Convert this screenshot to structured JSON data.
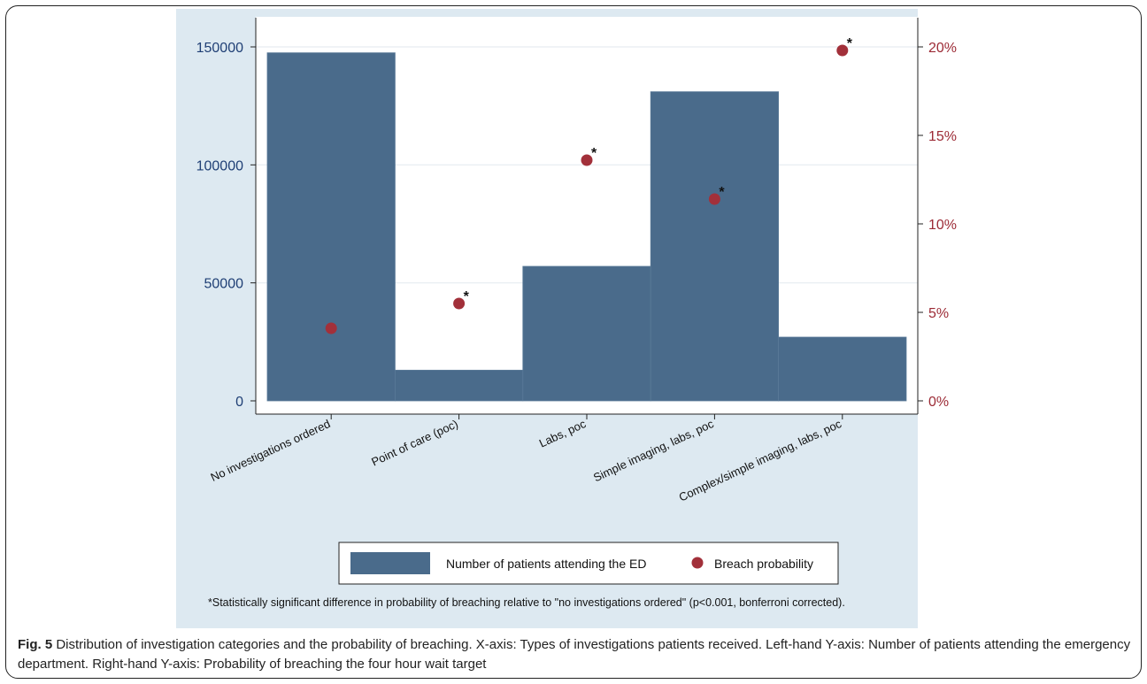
{
  "chart_data": {
    "type": "bar",
    "categories": [
      "No investigations ordered",
      "Point of care (poc)",
      "Labs, poc",
      "Simple imaging, labs, poc",
      "Complex/simple imaging, labs, poc"
    ],
    "series": [
      {
        "name": "Number of patients attending the ED",
        "type": "bar",
        "axis": "left",
        "values": [
          147500,
          13000,
          57000,
          131000,
          27000
        ],
        "color": "#4a6b8b"
      },
      {
        "name": "Breach probability",
        "type": "scatter",
        "axis": "right",
        "values": [
          4.1,
          5.5,
          13.6,
          11.4,
          19.8
        ],
        "significant": [
          false,
          true,
          true,
          true,
          true
        ],
        "color": "#a2303a"
      }
    ],
    "ylim_left": [
      0,
      150000
    ],
    "yticks_left": [
      "0",
      "50000",
      "100000",
      "150000"
    ],
    "ylim_right": [
      0,
      20
    ],
    "yticks_right": [
      "0%",
      "5%",
      "10%",
      "15%",
      "20%"
    ],
    "marker_note": "*",
    "footnote": "*Statistically significant difference in probability of breaching relative to \"no investigations ordered\" (p<0.001, bonferroni corrected).",
    "legend_position": "bottom",
    "grid": true,
    "left_axis_color": "#1f3f75",
    "right_axis_color": "#9c2a35",
    "background_color": "#dde9f1"
  },
  "caption": {
    "label": "Fig. 5",
    "text": " Distribution of investigation categories and the probability of breaching. X-axis: Types of investigations patients received. Left-hand Y-axis: Number of patients attending the emergency department. Right-hand Y-axis: Probability of breaching the four hour wait target"
  }
}
